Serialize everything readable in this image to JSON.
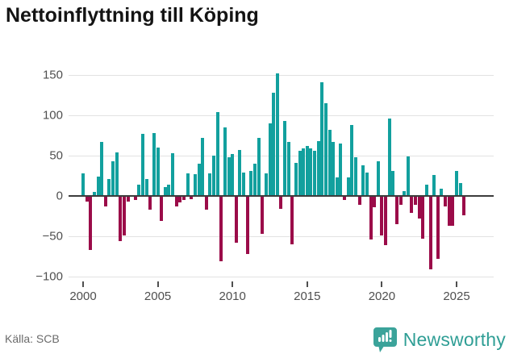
{
  "title": "Nettoinflyttning till Köping",
  "footer": {
    "source": "Källa: SCB",
    "brand": "Newsworthy"
  },
  "colors": {
    "positive": "#12a09e",
    "negative": "#9b0c49",
    "gridline": "#e2e2e2",
    "zero_axis": "#3c3c3c",
    "axis_text": "#4f4f4f",
    "title_text": "#141414",
    "source_text": "#6b6b6b",
    "brand_teal": "#2f9e95",
    "logo_badge": "#3ba39a"
  },
  "chart_data": {
    "type": "bar",
    "title": "Nettoinflyttning till Köping",
    "frequency": "quarterly",
    "x_start": "2000 Q1",
    "x_end": "2025 Q3",
    "ylim": [
      -100,
      150
    ],
    "yticks": [
      150,
      100,
      50,
      0,
      -50,
      -100
    ],
    "grid": true,
    "legend": "none",
    "xticks": [
      {
        "label": "2000",
        "index": 0
      },
      {
        "label": "2005",
        "index": 20
      },
      {
        "label": "2010",
        "index": 40
      },
      {
        "label": "2015",
        "index": 60
      },
      {
        "label": "2020",
        "index": 80
      },
      {
        "label": "2025",
        "index": 100
      }
    ],
    "values": [
      28,
      -6,
      -66,
      5,
      24,
      67,
      -12,
      21,
      43,
      54,
      -55,
      -48,
      -6,
      0,
      -4,
      14,
      77,
      21,
      -16,
      78,
      60,
      -30,
      11,
      14,
      53,
      -12,
      -7,
      -4,
      28,
      -3,
      27,
      40,
      72,
      -16,
      28,
      50,
      104,
      -80,
      85,
      48,
      52,
      -57,
      57,
      29,
      -71,
      31,
      40,
      72,
      -46,
      28,
      90,
      128,
      152,
      -15,
      93,
      67,
      -59,
      41,
      56,
      59,
      62,
      59,
      56,
      68,
      141,
      115,
      82,
      67,
      23,
      65,
      -4,
      23,
      88,
      48,
      -10,
      38,
      29,
      -53,
      -13,
      43,
      -48,
      -60,
      96,
      31,
      -34,
      -10,
      6,
      49,
      -20,
      -10,
      -27,
      -52,
      14,
      -90,
      26,
      -77,
      9,
      -12,
      -36,
      -36,
      31,
      16,
      -23
    ]
  }
}
